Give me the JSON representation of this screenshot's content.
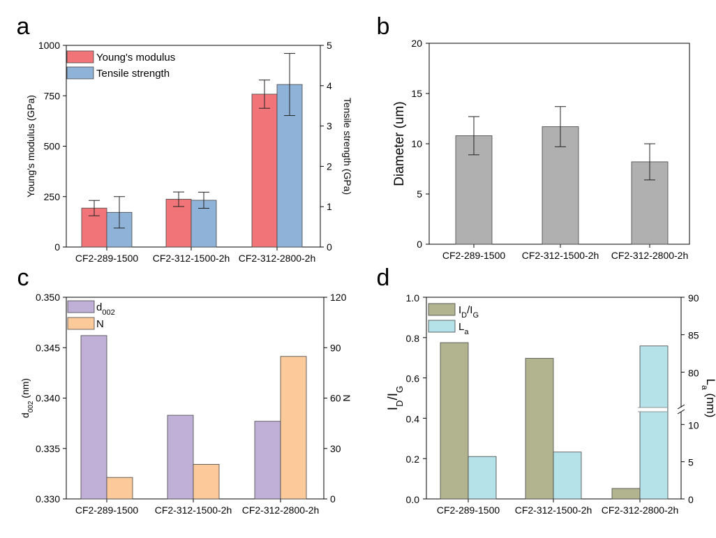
{
  "panel_letters": [
    "a",
    "b",
    "c",
    "d"
  ],
  "chart_data": [
    {
      "panel": "a",
      "type": "bar",
      "categories": [
        "CF2-289-1500",
        "CF2-312-1500-2h",
        "CF2-312-2800-2h"
      ],
      "ylabel": "Young's modulus (GPa)",
      "y2label": "Tensile strength (GPa)",
      "ylim": [
        0,
        1000
      ],
      "y2lim": [
        0,
        5
      ],
      "yticks": [
        "0",
        "250",
        "500",
        "750",
        "1000"
      ],
      "y2ticks": [
        "0",
        "1",
        "2",
        "3",
        "4",
        "5"
      ],
      "legend_position": "top-left",
      "series": [
        {
          "name": "Young's modulus",
          "axis": "left",
          "color": "#F07478",
          "values": [
            193,
            237,
            758
          ],
          "errors": [
            38,
            36,
            70
          ]
        },
        {
          "name": "Tensile strength",
          "axis": "right",
          "color": "#8FB2D8",
          "values": [
            0.86,
            1.16,
            4.03
          ],
          "errors": [
            0.39,
            0.2,
            0.77
          ]
        }
      ]
    },
    {
      "panel": "b",
      "type": "bar",
      "categories": [
        "CF2-289-1500",
        "CF2-312-1500-2h",
        "CF2-312-2800-2h"
      ],
      "ylabel": "Diameter (um)",
      "ylim": [
        0,
        20
      ],
      "yticks": [
        "0",
        "5",
        "10",
        "15",
        "20"
      ],
      "series": [
        {
          "color": "#B0B0B0",
          "values": [
            10.8,
            11.7,
            8.2
          ],
          "errors": [
            1.9,
            2.0,
            1.8
          ]
        }
      ]
    },
    {
      "panel": "c",
      "type": "bar",
      "categories": [
        "CF2-289-1500",
        "CF2-312-1500-2h",
        "CF2-312-2800-2h"
      ],
      "ylabel_main": "d",
      "ylabel_sub": "002",
      "ylabel_unit": " (nm)",
      "y2label": "N",
      "ylim": [
        0.33,
        0.35
      ],
      "y2lim": [
        0,
        120
      ],
      "yticks": [
        "0.330",
        "0.335",
        "0.340",
        "0.345",
        "0.350"
      ],
      "y2ticks": [
        "0",
        "30",
        "60",
        "90",
        "120"
      ],
      "legend_position": "top-left",
      "legend": [
        {
          "main": "d",
          "sub": "002"
        },
        {
          "main": "N",
          "sub": ""
        }
      ],
      "series": [
        {
          "name": "d002",
          "axis": "left",
          "color": "#C0B0D8",
          "values": [
            0.3462,
            0.3383,
            0.3377
          ]
        },
        {
          "name": "N",
          "axis": "right",
          "color": "#FBC99A",
          "values": [
            12.8,
            20.6,
            84.8
          ]
        }
      ]
    },
    {
      "panel": "d",
      "type": "bar",
      "categories": [
        "CF2-289-1500",
        "CF2-312-1500-2h",
        "CF2-312-2800-2h"
      ],
      "ylabel_parts": [
        {
          "t": "I"
        },
        {
          "t": "D",
          "sub": true
        },
        {
          "t": "/I"
        },
        {
          "t": "G",
          "sub": true
        }
      ],
      "y2label_parts": [
        {
          "t": "L"
        },
        {
          "t": "a",
          "sub": true
        },
        {
          "t": " (nm)"
        }
      ],
      "ylim": [
        0,
        1.0
      ],
      "yticks": [
        "0.0",
        "0.2",
        "0.4",
        "0.6",
        "0.8",
        "1.0"
      ],
      "y2_broken_axis": {
        "lower": [
          0,
          12
        ],
        "upper": [
          75,
          90
        ]
      },
      "y2ticks_lower": [
        "0",
        "5",
        "10"
      ],
      "y2ticks_upper": [
        "80",
        "85",
        "90"
      ],
      "legend_position": "top-left",
      "legend": [
        [
          {
            "t": "I"
          },
          {
            "t": "D",
            "sub": true
          },
          {
            "t": "/I"
          },
          {
            "t": "G",
            "sub": true
          }
        ],
        [
          {
            "t": "L"
          },
          {
            "t": "a",
            "sub": true
          }
        ]
      ],
      "series": [
        {
          "name": "ID/IG",
          "axis": "left",
          "color": "#B1B48E",
          "values": [
            0.775,
            0.697,
            0.052
          ]
        },
        {
          "name": "La",
          "axis": "right",
          "color": "#B4E2E8",
          "values": [
            5.7,
            6.3,
            83.5
          ]
        }
      ]
    }
  ]
}
